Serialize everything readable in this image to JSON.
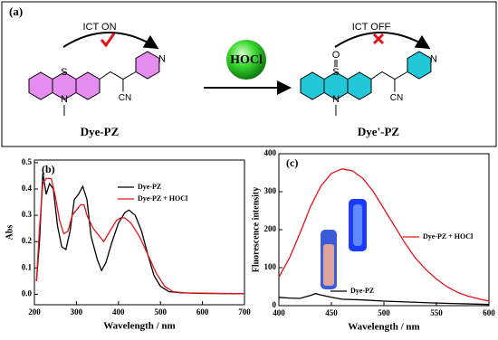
{
  "scheme": {
    "label": "(a)",
    "reagent": "HOCl",
    "left": {
      "name": "Dye-PZ",
      "annotation": "ICT ON",
      "atoms": [
        "S",
        "N",
        "N",
        "CN"
      ]
    },
    "right": {
      "name": "Dye'-PZ",
      "annotation": "ICT OFF",
      "atoms": [
        "O",
        "S",
        "N",
        "N",
        "CN"
      ]
    }
  },
  "chart_data": [
    {
      "type": "line",
      "panel_label": "(b)",
      "x_label": "Wavelength / nm",
      "y_label": "Abs",
      "xlim": [
        200,
        700
      ],
      "xticks": [
        200,
        300,
        400,
        500,
        600,
        700
      ],
      "ylim": [
        -0.04,
        0.51
      ],
      "yticks": [
        {
          "value": 0,
          "label": "0.0"
        },
        {
          "value": 0.1,
          "label": "0.1"
        },
        {
          "value": 0.2,
          "label": "0.2"
        },
        {
          "value": 0.3,
          "label": "0.3"
        },
        {
          "value": 0.4,
          "label": "0.4"
        },
        {
          "value": 0.5,
          "label": "0.5"
        }
      ],
      "series": [
        {
          "name": "Dye-PZ",
          "color": "#000000",
          "x": [
            205,
            212,
            220,
            228,
            236,
            245,
            255,
            265,
            275,
            285,
            295,
            305,
            315,
            325,
            335,
            350,
            360,
            370,
            385,
            400,
            415,
            425,
            440,
            455,
            470,
            485,
            500,
            520,
            550,
            600,
            700
          ],
          "values": [
            0.05,
            0.2,
            0.46,
            0.38,
            0.42,
            0.4,
            0.26,
            0.18,
            0.17,
            0.24,
            0.36,
            0.38,
            0.41,
            0.36,
            0.22,
            0.13,
            0.09,
            0.12,
            0.2,
            0.27,
            0.31,
            0.32,
            0.3,
            0.24,
            0.15,
            0.07,
            0.03,
            0.01,
            0.005,
            0.003,
            0.002
          ]
        },
        {
          "name": "Dye-PZ + HOCl",
          "color": "#e8121c",
          "x": [
            205,
            212,
            220,
            228,
            240,
            250,
            260,
            270,
            280,
            290,
            300,
            310,
            318,
            325,
            340,
            355,
            365,
            380,
            395,
            405,
            415,
            430,
            450,
            470,
            490,
            510,
            530,
            560,
            700
          ],
          "values": [
            0.05,
            0.25,
            0.42,
            0.44,
            0.44,
            0.37,
            0.28,
            0.23,
            0.24,
            0.3,
            0.32,
            0.34,
            0.34,
            0.3,
            0.25,
            0.22,
            0.2,
            0.24,
            0.28,
            0.29,
            0.29,
            0.27,
            0.22,
            0.15,
            0.08,
            0.03,
            0.01,
            0.005,
            0.002
          ]
        }
      ]
    },
    {
      "type": "line",
      "panel_label": "(c)",
      "x_label": "Wavelength / nm",
      "y_label": "Fluorescence intensity",
      "xlim": [
        400,
        600
      ],
      "xticks": [
        400,
        450,
        500,
        550,
        600
      ],
      "ylim": [
        0,
        400
      ],
      "yticks": [
        0,
        100,
        200,
        300,
        400
      ],
      "series": [
        {
          "name": "Dye-PZ",
          "color": "#000000",
          "x": [
            400,
            410,
            420,
            430,
            435,
            440,
            450,
            460,
            480,
            500,
            550,
            600
          ],
          "values": [
            22,
            20,
            19,
            27,
            32,
            28,
            22,
            17,
            15,
            12,
            7,
            3
          ]
        },
        {
          "name": "Dye-PZ + HOCl",
          "color": "#e8121c",
          "x": [
            400,
            410,
            420,
            430,
            440,
            450,
            460,
            470,
            480,
            490,
            500,
            510,
            520,
            530,
            540,
            550,
            560,
            570,
            580,
            590,
            600
          ],
          "values": [
            75,
            125,
            190,
            260,
            315,
            348,
            360,
            355,
            335,
            300,
            255,
            210,
            165,
            125,
            95,
            70,
            50,
            35,
            25,
            18,
            12
          ]
        }
      ]
    }
  ]
}
